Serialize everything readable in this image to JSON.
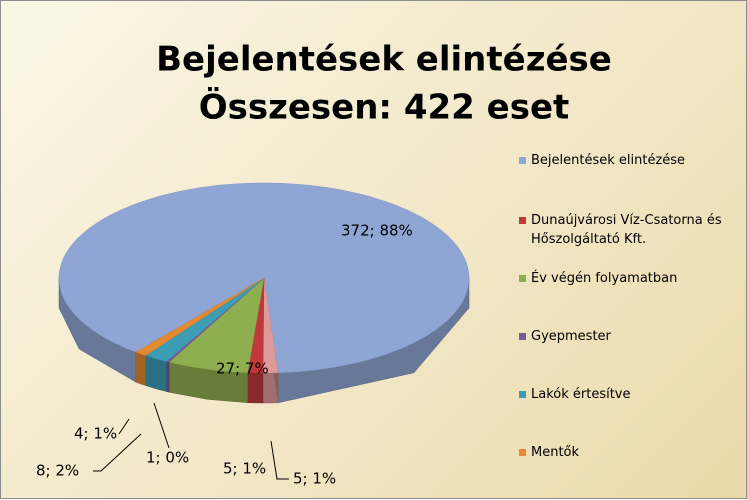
{
  "chart_data": {
    "type": "pie",
    "title": "Bejelentések elintézése",
    "subtitle": "Összesen: 422 eset",
    "categories": [
      "Bejelentések elintézése",
      null,
      "Dunaújvárosi Víz-Csatorna és Hőszolgáltató Kft.",
      "Év végén folyamatban",
      "Gyepmester",
      "Lakók értesítve",
      "Mentők"
    ],
    "values": [
      372,
      5,
      5,
      27,
      1,
      8,
      4
    ],
    "value_labels": [
      "372; 88%",
      "5; 1%",
      "5; 1%",
      "27; 7%",
      "1; 0%",
      "8; 2%",
      "4; 1%"
    ],
    "colors": [
      "#8fa6d4",
      "#dd9a9a",
      "#c0393b",
      "#8fae4f",
      "#7a5a9a",
      "#3d9db5",
      "#e48a33"
    ],
    "legend": "right"
  }
}
